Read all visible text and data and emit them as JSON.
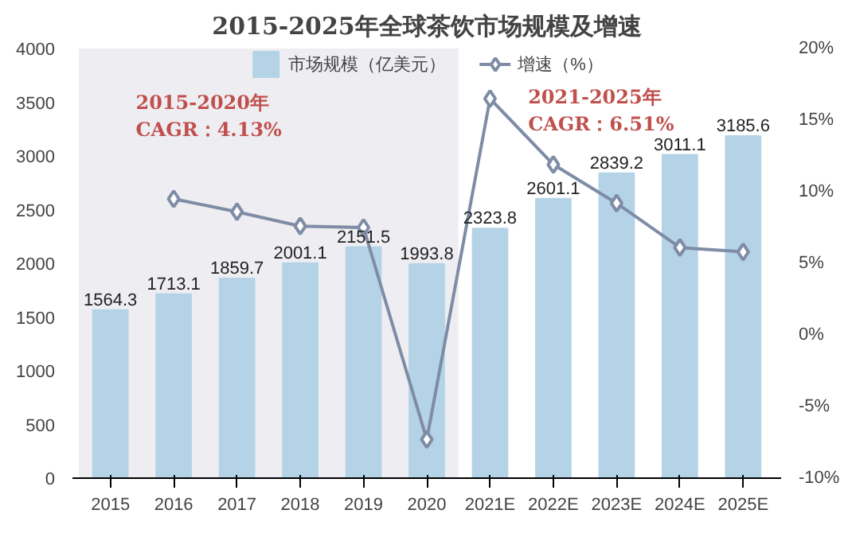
{
  "chart_data": {
    "type": "bar",
    "title": "2015-2025年全球茶饮市场规模及增速",
    "categories": [
      "2015",
      "2016",
      "2017",
      "2018",
      "2019",
      "2020",
      "2021E",
      "2022E",
      "2023E",
      "2024E",
      "2025E"
    ],
    "series": [
      {
        "name": "市场规模（亿美元）",
        "color": "#b4d3e6",
        "values": [
          1564.3,
          1713.1,
          1859.7,
          2001.1,
          2151.5,
          1993.8,
          2323.8,
          2601.1,
          2839.2,
          3011.1,
          3185.6
        ],
        "value_labels": [
          "1564.3",
          "1713.1",
          "1859.7",
          "2001.1",
          "2151.5",
          "1993.8",
          "2323.8",
          "2601.1",
          "2839.2",
          "3011.1",
          "3185.6"
        ]
      },
      {
        "name": "增速（%）",
        "type": "line",
        "axis": "y2",
        "color": "#7f8ca6",
        "marker": "diamond",
        "values": [
          null,
          9.5,
          8.6,
          7.6,
          7.5,
          -7.3,
          16.5,
          11.9,
          9.2,
          6.1,
          5.8
        ]
      }
    ],
    "ylim": [
      0,
      4000
    ],
    "yticks": [
      0,
      500,
      1000,
      1500,
      2000,
      2500,
      3000,
      3500,
      4000
    ],
    "y2lim": [
      -10,
      20
    ],
    "y2ticks": [
      {
        "value": -10,
        "label": "-10%"
      },
      {
        "value": -5,
        "label": "-5%"
      },
      {
        "value": 0,
        "label": "0%"
      },
      {
        "value": 5,
        "label": "5%"
      },
      {
        "value": 10,
        "label": "10%"
      },
      {
        "value": 15,
        "label": "15%"
      },
      {
        "value": 20,
        "label": "20%"
      }
    ],
    "bands": [
      {
        "axis": "x",
        "from": "2015",
        "to": "2020",
        "color": "#eeeef2"
      }
    ],
    "annotations": [
      "2015-2020年\nCAGR：4.13%",
      "2021-2025年\nCAGR：6.51%"
    ],
    "legend": "top",
    "grid": false
  }
}
